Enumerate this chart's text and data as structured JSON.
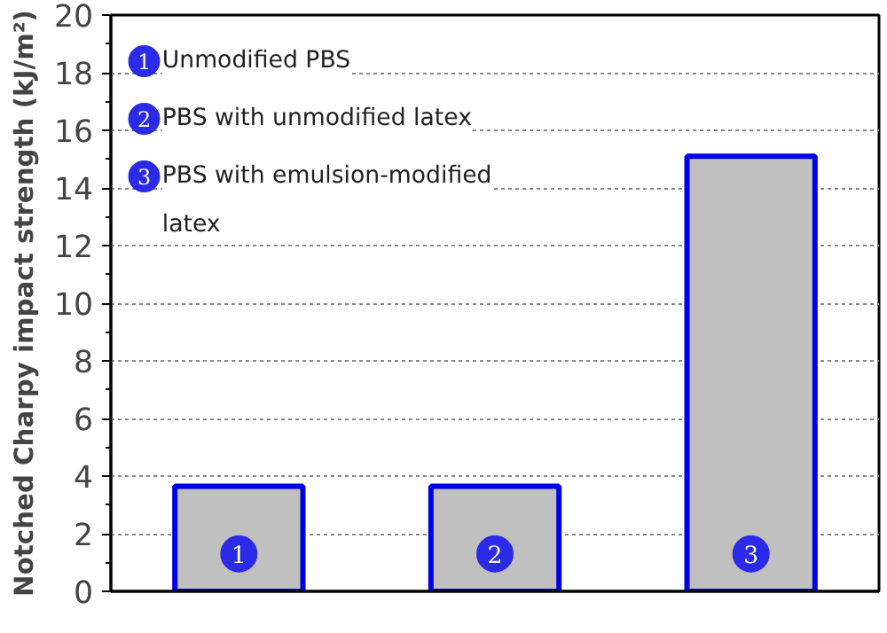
{
  "chart_data": {
    "type": "bar",
    "categories": [
      "1",
      "2",
      "3"
    ],
    "values": [
      3.65,
      3.65,
      15.1
    ],
    "color": "#c0c0c0",
    "ylabel": "Notched Charpy impact strength (kJ/m²)",
    "ylim": [
      0,
      20
    ],
    "yticks": [
      0,
      2,
      4,
      6,
      8,
      10,
      12,
      14,
      16,
      18,
      20
    ],
    "grid": "y",
    "annotations": [
      "Unmodified PBS",
      "PBS with unmodified latex",
      "PBS with emulsion-modified latex"
    ]
  }
}
